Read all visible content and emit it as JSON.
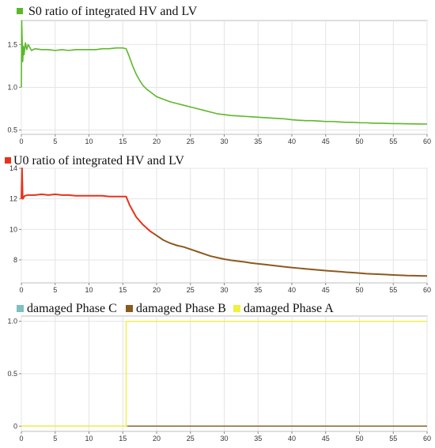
{
  "chart_data": [
    {
      "type": "line",
      "title": "S0 ratio of integrated HV and LV",
      "title_marker_color": "#5cb82a",
      "xlabel": "",
      "ylabel": "",
      "xlim": [
        0,
        60
      ],
      "ylim": [
        0.45,
        1.78
      ],
      "xticks": [
        0,
        5,
        10,
        15,
        20,
        25,
        30,
        35,
        40,
        45,
        50,
        55,
        60
      ],
      "yticks": [
        0.5,
        1.0,
        1.5
      ],
      "ytick_labels": [
        "0.5",
        "1.0",
        "1.5"
      ],
      "grid": true,
      "series": [
        {
          "color": "#5cb82a",
          "x": [
            0,
            0.05,
            0.1,
            0.2,
            0.3,
            0.4,
            0.6,
            0.8,
            1,
            1.5,
            2,
            3,
            4,
            5,
            6,
            7,
            8,
            9,
            10,
            11,
            12,
            13,
            14,
            15,
            15.5,
            16,
            16.5,
            17,
            17.5,
            18,
            18.5,
            19,
            19.5,
            20,
            21,
            22,
            23,
            24,
            25,
            26,
            27,
            28,
            29,
            30,
            31,
            32,
            33,
            34,
            35,
            36,
            37,
            38,
            39,
            40,
            41,
            42,
            43,
            44,
            45,
            46,
            47,
            48,
            49,
            50,
            51,
            52,
            53,
            54,
            55,
            56,
            57,
            58,
            59,
            60
          ],
          "y": [
            1.0,
            1.78,
            1.62,
            1.3,
            1.48,
            1.38,
            1.52,
            1.44,
            1.5,
            1.43,
            1.45,
            1.44,
            1.44,
            1.43,
            1.44,
            1.43,
            1.44,
            1.44,
            1.44,
            1.44,
            1.45,
            1.45,
            1.46,
            1.46,
            1.45,
            1.35,
            1.24,
            1.15,
            1.08,
            1.02,
            0.98,
            0.95,
            0.92,
            0.89,
            0.86,
            0.83,
            0.81,
            0.79,
            0.77,
            0.75,
            0.73,
            0.71,
            0.69,
            0.68,
            0.67,
            0.665,
            0.66,
            0.655,
            0.65,
            0.645,
            0.64,
            0.635,
            0.63,
            0.62,
            0.615,
            0.61,
            0.61,
            0.605,
            0.6,
            0.6,
            0.595,
            0.59,
            0.59,
            0.585,
            0.585,
            0.58,
            0.58,
            0.578,
            0.575,
            0.575,
            0.573,
            0.572,
            0.571,
            0.57
          ]
        }
      ]
    },
    {
      "type": "line",
      "title": "U0 ratio of integrated HV and LV",
      "title_marker_color": "#e8321a",
      "xlabel": "",
      "ylabel": "",
      "xlim": [
        0,
        60
      ],
      "ylim": [
        6.5,
        14
      ],
      "xticks": [
        0,
        5,
        10,
        15,
        20,
        25,
        30,
        35,
        40,
        45,
        50,
        55,
        60
      ],
      "yticks": [
        8,
        10,
        12,
        14
      ],
      "ytick_labels": [
        "8",
        "10",
        "12",
        "14"
      ],
      "grid": true,
      "series": [
        {
          "color": "#e8321a",
          "x": [
            0,
            0.1,
            0.2,
            0.5,
            1,
            2,
            3,
            4,
            5,
            6,
            7,
            8,
            9,
            10,
            11,
            12,
            13,
            14,
            15,
            15.5,
            16,
            17,
            18,
            19,
            19.5
          ],
          "y": [
            12.0,
            14.0,
            12.0,
            12.2,
            12.25,
            12.25,
            12.3,
            12.25,
            12.3,
            12.25,
            12.25,
            12.2,
            12.2,
            12.2,
            12.2,
            12.2,
            12.15,
            12.15,
            12.15,
            12.15,
            11.6,
            10.8,
            10.3,
            9.9,
            9.75
          ]
        },
        {
          "color": "#8b5a1e",
          "x": [
            19.5,
            20,
            21,
            22,
            23,
            24,
            25,
            26,
            27,
            28,
            29,
            30,
            31,
            32,
            33,
            34,
            35,
            36,
            37,
            38,
            39,
            40,
            41,
            42,
            43,
            44,
            45,
            46,
            47,
            48,
            49,
            50,
            51,
            52,
            53,
            54,
            55,
            56,
            57,
            58,
            59,
            60
          ],
          "y": [
            9.75,
            9.6,
            9.3,
            9.1,
            8.95,
            8.85,
            8.7,
            8.55,
            8.4,
            8.25,
            8.15,
            8.05,
            7.98,
            7.92,
            7.87,
            7.8,
            7.75,
            7.7,
            7.65,
            7.6,
            7.55,
            7.5,
            7.46,
            7.42,
            7.38,
            7.34,
            7.3,
            7.27,
            7.24,
            7.2,
            7.17,
            7.14,
            7.1,
            7.08,
            7.06,
            7.04,
            7.02,
            7.0,
            6.98,
            6.97,
            6.96,
            6.95
          ]
        }
      ]
    },
    {
      "type": "line",
      "title": "",
      "xlabel": "",
      "ylabel": "",
      "xlim": [
        0,
        60
      ],
      "ylim": [
        -0.05,
        1.05
      ],
      "xticks": [
        0,
        5,
        10,
        15,
        20,
        25,
        30,
        35,
        40,
        45,
        50,
        55,
        60
      ],
      "yticks": [
        0,
        0.5,
        1.0
      ],
      "ytick_labels": [
        "0",
        "0.5",
        "1.0"
      ],
      "grid": true,
      "legend": [
        {
          "label": "damaged Phase C",
          "color": "#7fbfbf"
        },
        {
          "label": "damaged Phase B",
          "color": "#8b5a1e"
        },
        {
          "label": "damaged Phase A",
          "color": "#f0f040"
        }
      ],
      "series": [
        {
          "name": "damaged Phase C",
          "color": "#7fbfbf",
          "x": [
            0,
            60
          ],
          "y": [
            0,
            0
          ]
        },
        {
          "name": "damaged Phase A",
          "color": "#f0f040",
          "x": [
            0,
            15.5,
            15.5,
            60
          ],
          "y": [
            0,
            0,
            1,
            1
          ]
        },
        {
          "name": "damaged Phase B",
          "color": "#8b5a1e",
          "x": [
            15.7,
            60
          ],
          "y": [
            0,
            0
          ]
        }
      ]
    }
  ]
}
